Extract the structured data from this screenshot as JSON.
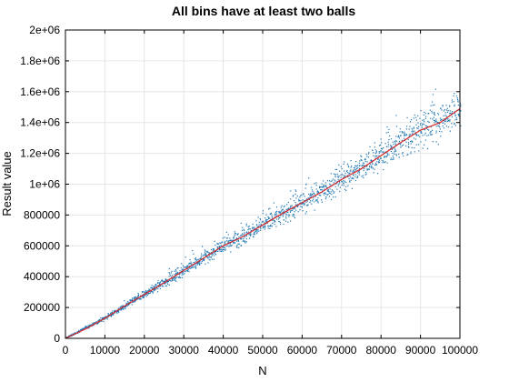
{
  "chart_data": {
    "type": "scatter",
    "title": "All bins have at least two balls",
    "xlabel": "N",
    "ylabel": "Result value",
    "xlim": [
      0,
      100000
    ],
    "ylim": [
      0,
      2000000
    ],
    "xticks": [
      0,
      10000,
      20000,
      30000,
      40000,
      50000,
      60000,
      70000,
      80000,
      90000,
      100000
    ],
    "xtick_labels": [
      "0",
      "10000",
      "20000",
      "30000",
      "40000",
      "50000",
      "60000",
      "70000",
      "80000",
      "90000",
      "100000"
    ],
    "yticks": [
      0,
      200000,
      400000,
      600000,
      800000,
      1000000,
      1200000,
      1400000,
      1600000,
      1800000,
      2000000
    ],
    "ytick_labels": [
      "0",
      "200000",
      "400000",
      "600000",
      "800000",
      "1e+06",
      "1.2e+06",
      "1.4e+06",
      "1.6e+06",
      "1.8e+06",
      "2e+06"
    ],
    "grid": true,
    "colors": {
      "scatter": "#1f77b4",
      "mean_line": "#d62728"
    },
    "series": [
      {
        "type": "scatter",
        "sample_trend": {
          "x": [
            0,
            10000,
            20000,
            30000,
            40000,
            50000,
            60000,
            70000,
            80000,
            90000,
            100000
          ],
          "y": [
            0,
            130000,
            285000,
            440000,
            600000,
            735000,
            880000,
            1030000,
            1185000,
            1350000,
            1490000
          ]
        }
      },
      {
        "type": "line",
        "x": [
          0,
          5000,
          10000,
          15000,
          20000,
          25000,
          30000,
          35000,
          40000,
          45000,
          50000,
          55000,
          60000,
          65000,
          70000,
          75000,
          80000,
          85000,
          90000,
          95000,
          100000
        ],
        "y": [
          0,
          60000,
          130000,
          210000,
          285000,
          360000,
          440000,
          520000,
          600000,
          660000,
          735000,
          810000,
          880000,
          950000,
          1030000,
          1100000,
          1185000,
          1270000,
          1350000,
          1400000,
          1490000
        ]
      }
    ]
  }
}
